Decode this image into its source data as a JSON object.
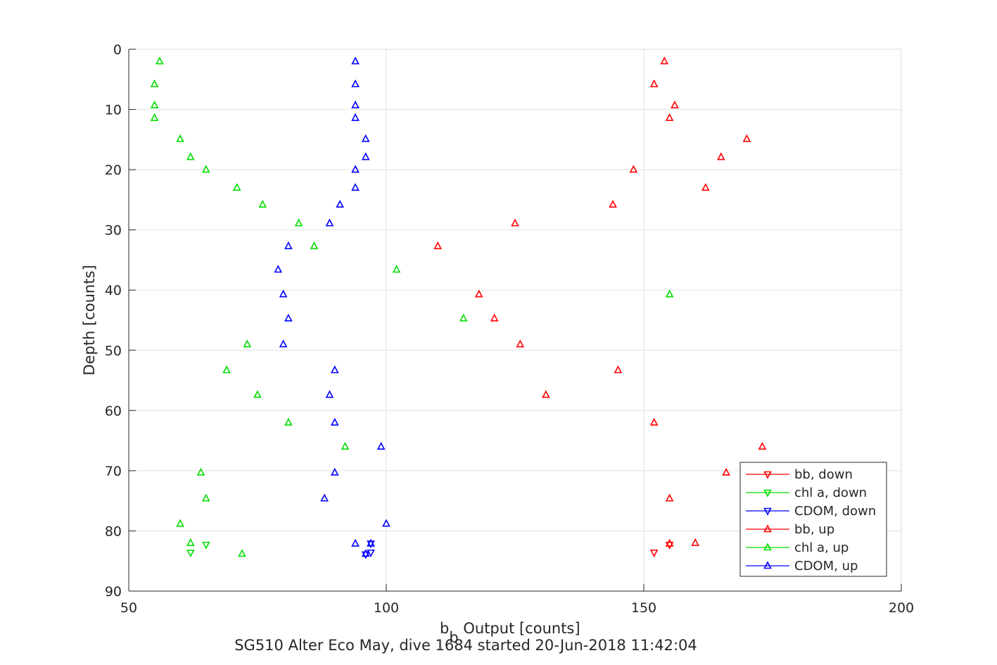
{
  "chart_data": {
    "type": "scatter",
    "title": "",
    "xlabel": "b",
    "xlabel_sub": "b",
    "xlabel_rest": " Output [counts]",
    "ylabel": "Depth [counts]",
    "caption": "SG510 Alter Eco May, dive 1684 started 20-Jun-2018 11:42:04",
    "xlim": [
      50,
      200
    ],
    "ylim": [
      0,
      90
    ],
    "y_reversed": true,
    "xticks": [
      50,
      100,
      150,
      200
    ],
    "yticks": [
      0,
      10,
      20,
      30,
      40,
      50,
      60,
      70,
      80,
      90
    ],
    "grid": true,
    "legend_placement": "bottom-right",
    "series": [
      {
        "name": "bb, down",
        "color": "#ff0000",
        "marker": "triangle-down",
        "points": [
          [
            152,
            83.6
          ],
          [
            155,
            82.3
          ]
        ]
      },
      {
        "name": "chl a, down",
        "color": "#00dd00",
        "marker": "triangle-down",
        "points": [
          [
            62,
            83.6
          ],
          [
            65,
            82.3
          ]
        ]
      },
      {
        "name": "CDOM, down",
        "color": "#0000ff",
        "marker": "triangle-down",
        "points": [
          [
            96,
            83.9
          ],
          [
            97,
            83.6
          ],
          [
            97,
            82.1
          ]
        ]
      },
      {
        "name": "bb, up",
        "color": "#ff0000",
        "marker": "triangle-up",
        "points": [
          [
            154,
            2
          ],
          [
            152,
            5.8
          ],
          [
            156,
            9.3
          ],
          [
            155,
            11.4
          ],
          [
            170,
            14.9
          ],
          [
            165,
            17.9
          ],
          [
            148,
            20
          ],
          [
            162,
            23
          ],
          [
            144,
            25.8
          ],
          [
            125,
            28.9
          ],
          [
            110,
            32.7
          ],
          [
            118,
            40.7
          ],
          [
            121,
            44.7
          ],
          [
            126,
            49
          ],
          [
            145,
            53.3
          ],
          [
            131,
            57.4
          ],
          [
            152,
            62
          ],
          [
            173,
            66
          ],
          [
            166,
            70.3
          ],
          [
            155,
            74.6
          ],
          [
            160,
            82
          ],
          [
            155,
            82.1
          ]
        ]
      },
      {
        "name": "chl a, up",
        "color": "#00dd00",
        "marker": "triangle-up",
        "points": [
          [
            56,
            2
          ],
          [
            55,
            5.8
          ],
          [
            55,
            9.3
          ],
          [
            55,
            11.4
          ],
          [
            60,
            14.9
          ],
          [
            62,
            17.9
          ],
          [
            65,
            20
          ],
          [
            71,
            23
          ],
          [
            76,
            25.8
          ],
          [
            83,
            28.9
          ],
          [
            86,
            32.7
          ],
          [
            102,
            36.6
          ],
          [
            155,
            40.7
          ],
          [
            115,
            44.7
          ],
          [
            73,
            49
          ],
          [
            69,
            53.3
          ],
          [
            75,
            57.4
          ],
          [
            81,
            62
          ],
          [
            92,
            66
          ],
          [
            64,
            70.3
          ],
          [
            65,
            74.6
          ],
          [
            60,
            78.8
          ],
          [
            62,
            82
          ],
          [
            72,
            83.8
          ]
        ]
      },
      {
        "name": "CDOM, up",
        "color": "#0000ff",
        "marker": "triangle-up",
        "points": [
          [
            94,
            2
          ],
          [
            94,
            5.8
          ],
          [
            94,
            9.3
          ],
          [
            94,
            11.4
          ],
          [
            96,
            14.9
          ],
          [
            96,
            17.9
          ],
          [
            94,
            20
          ],
          [
            94,
            23
          ],
          [
            91,
            25.8
          ],
          [
            89,
            28.9
          ],
          [
            81,
            32.7
          ],
          [
            79,
            36.6
          ],
          [
            80,
            40.7
          ],
          [
            81,
            44.7
          ],
          [
            80,
            49
          ],
          [
            90,
            53.3
          ],
          [
            89,
            57.4
          ],
          [
            90,
            62
          ],
          [
            99,
            66
          ],
          [
            90,
            70.3
          ],
          [
            88,
            74.6
          ],
          [
            100,
            78.8
          ],
          [
            94,
            82.1
          ],
          [
            97,
            82.1
          ],
          [
            96,
            83.8
          ]
        ]
      }
    ]
  }
}
